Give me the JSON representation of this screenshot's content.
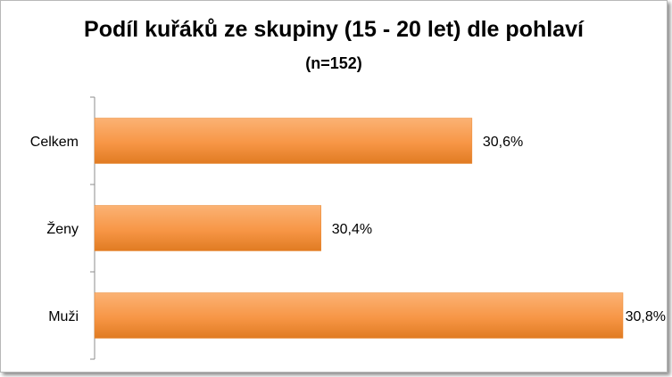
{
  "chart_data": {
    "type": "bar",
    "orientation": "horizontal",
    "title": "Podíl kuřáků ze skupiny (15 - 20 let) dle pohlaví",
    "subtitle": "(n=152)",
    "categories": [
      "Celkem",
      "Ženy",
      "Muži"
    ],
    "values": [
      30.6,
      30.4,
      30.8
    ],
    "value_labels": [
      "30,6%",
      "30,4%",
      "30,8%"
    ],
    "bar_color": "#f79646",
    "xlim": [
      30.1,
      30.8
    ],
    "grid": false,
    "legend": "none"
  }
}
